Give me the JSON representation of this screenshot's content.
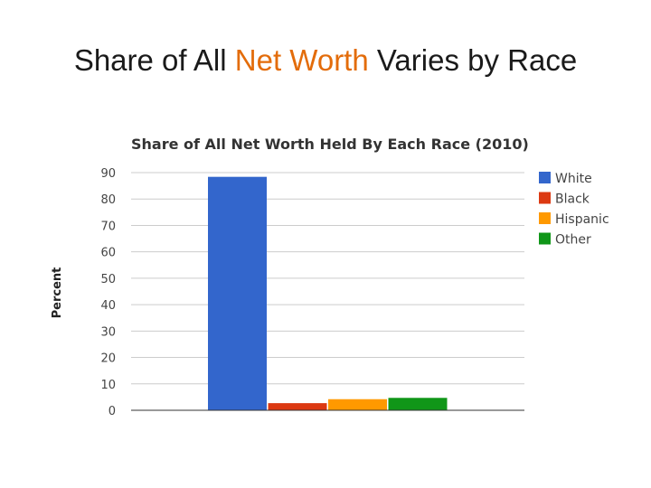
{
  "slide": {
    "title_before": "Share of All ",
    "title_highlight": "Net Worth",
    "title_after": " Varies by Race",
    "highlight_color": "#e36c0a"
  },
  "chart_data": {
    "type": "bar",
    "title": "Share of All Net Worth Held By Each Race (2010)",
    "xlabel": "",
    "ylabel": "Percent",
    "ylim": [
      0,
      90
    ],
    "yticks": [
      0,
      10,
      20,
      30,
      40,
      50,
      60,
      70,
      80,
      90
    ],
    "grid": true,
    "legend": "right",
    "categories": [
      ""
    ],
    "series": [
      {
        "name": "White",
        "values": [
          88.4
        ],
        "color": "#3366cc"
      },
      {
        "name": "Black",
        "values": [
          2.7
        ],
        "color": "#dc3912"
      },
      {
        "name": "Hispanic",
        "values": [
          4.2
        ],
        "color": "#ff9900"
      },
      {
        "name": "Other",
        "values": [
          4.7
        ],
        "color": "#109618"
      }
    ]
  }
}
